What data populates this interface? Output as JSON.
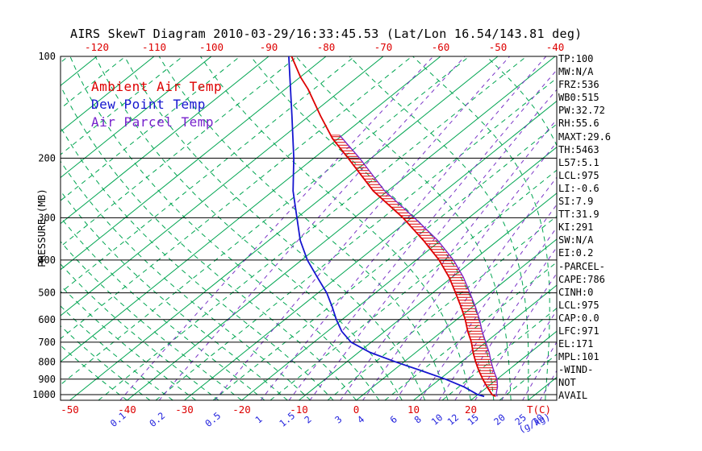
{
  "title": "AIRS SkewT Diagram 2010-03-29/16:33:45.53 (Lat/Lon 16.54/143.81 deg)",
  "legend": {
    "items": [
      {
        "label": "Ambient Air Temp",
        "color": "#DD0000"
      },
      {
        "label": "Dew Point Temp",
        "color": "#1515CF"
      },
      {
        "label": "Air Parcel Temp",
        "color": "#7722CC"
      }
    ]
  },
  "stats_panel": {
    "lines": [
      "TP:100",
      "MW:N/A",
      "FRZ:536",
      "WB0:515",
      "PW:32.72",
      "RH:55.6",
      "MAXT:29.6",
      "TH:5463",
      "L57:5.1",
      "LCL:975",
      "LI:-0.6",
      "SI:7.9",
      "TT:31.9",
      "KI:291",
      "SW:N/A",
      "EI:0.2",
      "-PARCEL-",
      "CAPE:786",
      "CINH:0",
      "LCL:975",
      "CAP:0.0",
      "LFC:971",
      "EL:171",
      "MPL:101",
      "-WIND-",
      "NOT",
      "AVAIL"
    ]
  },
  "chart_data": {
    "type": "line",
    "subtype": "skew-t-log-p",
    "title": "AIRS SkewT Diagram 2010-03-29/16:33:45.53 (Lat/Lon 16.54/143.81 deg)",
    "pressure_axis": {
      "label": "PRESSURE (MB)",
      "unit": "MB",
      "scale": "log",
      "range": [
        100,
        1040
      ],
      "ticks": [
        100,
        200,
        300,
        400,
        500,
        600,
        700,
        800,
        900,
        1000
      ]
    },
    "temp_axis": {
      "unit_label": "T(C)",
      "color": "#DD0000",
      "top_ticks": [
        -120,
        -110,
        -100,
        -90,
        -80,
        -70,
        -60,
        -50,
        -40
      ],
      "bottom_ticks": [
        -50,
        -40,
        -30,
        -20,
        -10,
        0,
        10,
        20
      ]
    },
    "mixing_ratio": {
      "unit_label": "(g/kg)",
      "color": "#2222DD",
      "ticks": [
        0.1,
        0.2,
        0.5,
        1,
        1.5,
        2,
        3,
        4,
        6,
        8,
        10,
        12,
        15,
        20,
        25,
        30
      ]
    },
    "background": {
      "isotherms": {
        "min": -125,
        "max": 35,
        "step": 5,
        "major_every": 10,
        "color": "#00A551"
      },
      "moist_adiabat_color": "#00A551",
      "moist_adiabat_surface_temps": [
        -40,
        -36,
        -32,
        -28,
        -24,
        -20,
        -16,
        -12,
        -8,
        -4,
        0,
        4,
        8,
        12,
        16,
        20,
        24,
        27,
        30,
        33,
        36
      ],
      "mixing_line_color": "#7B35C7"
    },
    "series": [
      {
        "name": "Ambient Air Temp",
        "color": "#DD0000",
        "width": 1.8,
        "points": [
          [
            100,
            -86
          ],
          [
            115,
            -80
          ],
          [
            125,
            -76
          ],
          [
            150,
            -68
          ],
          [
            175,
            -61
          ],
          [
            200,
            -54
          ],
          [
            250,
            -42.5
          ],
          [
            300,
            -31.5
          ],
          [
            350,
            -23
          ],
          [
            400,
            -16
          ],
          [
            450,
            -10.5
          ],
          [
            500,
            -6
          ],
          [
            550,
            -2
          ],
          [
            600,
            1.5
          ],
          [
            650,
            4.5
          ],
          [
            700,
            7.5
          ],
          [
            750,
            10
          ],
          [
            800,
            12.5
          ],
          [
            850,
            15
          ],
          [
            900,
            17.5
          ],
          [
            950,
            20
          ],
          [
            1000,
            22.5
          ],
          [
            1012,
            23.5
          ]
        ]
      },
      {
        "name": "Dew Point Temp",
        "color": "#1515CF",
        "width": 1.8,
        "points": [
          [
            100,
            -86.5
          ],
          [
            150,
            -73
          ],
          [
            200,
            -63.5
          ],
          [
            250,
            -56.5
          ],
          [
            300,
            -50
          ],
          [
            350,
            -44.5
          ],
          [
            400,
            -39
          ],
          [
            450,
            -33.5
          ],
          [
            500,
            -28.5
          ],
          [
            550,
            -24.5
          ],
          [
            600,
            -21
          ],
          [
            650,
            -17.5
          ],
          [
            700,
            -13.5
          ],
          [
            750,
            -8
          ],
          [
            800,
            -1.5
          ],
          [
            850,
            5
          ],
          [
            900,
            11
          ],
          [
            950,
            16
          ],
          [
            1000,
            20
          ],
          [
            1012,
            21.5
          ]
        ]
      },
      {
        "name": "Air Parcel Temp",
        "color": "#7722CC",
        "width": 1.3,
        "points": [
          [
            171,
            -60.5
          ],
          [
            200,
            -52
          ],
          [
            250,
            -40.5
          ],
          [
            300,
            -29.5
          ],
          [
            350,
            -20.5
          ],
          [
            400,
            -13.5
          ],
          [
            450,
            -8
          ],
          [
            500,
            -3.5
          ],
          [
            550,
            0.5
          ],
          [
            600,
            4
          ],
          [
            650,
            7
          ],
          [
            700,
            10
          ],
          [
            750,
            12.8
          ],
          [
            800,
            15.2
          ],
          [
            850,
            17.6
          ],
          [
            900,
            20
          ],
          [
            950,
            21.8
          ],
          [
            975,
            22.5
          ],
          [
            1000,
            23.2
          ],
          [
            1012,
            23.8
          ]
        ]
      }
    ],
    "cape_region": {
      "pressure_top": 171,
      "pressure_bottom": 965,
      "between": [
        "Air Parcel Temp",
        "Ambient Air Temp"
      ],
      "hatch_color": "#DD0000"
    },
    "legend_position": "top-left",
    "grid": "skew-t background (isotherms, moist adiabats, mixing-ratio lines, isobars)"
  }
}
